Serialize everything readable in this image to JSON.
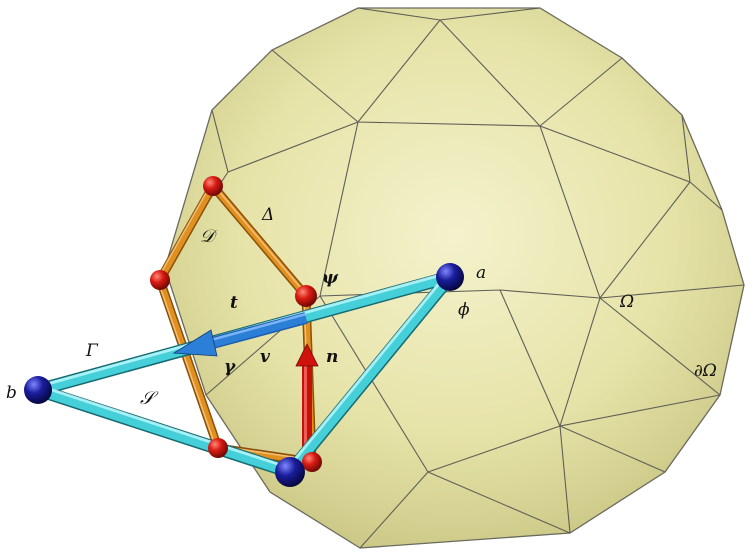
{
  "labels": {
    "a": "a",
    "b": "b",
    "phi": "ϕ",
    "psi": "ψ",
    "t": "t",
    "v": "v",
    "gamma": "γ",
    "n": "n",
    "Gamma": "Γ",
    "S": "𝒮",
    "D": "𝒟",
    "Delta": "Δ",
    "Omega": "Ω",
    "boundary": "∂Ω"
  },
  "colors": {
    "polyhedron_fill": "#e4e2a2",
    "polyhedron_edge": "#5f5f58",
    "orange_edge": "#e0901e",
    "red_node": "#d81a12",
    "cyan_edge": "#45cfd8",
    "blue_node": "#1a1d9c",
    "blue_arrow": "#2b7fd6",
    "red_arrow": "#d0120c"
  }
}
